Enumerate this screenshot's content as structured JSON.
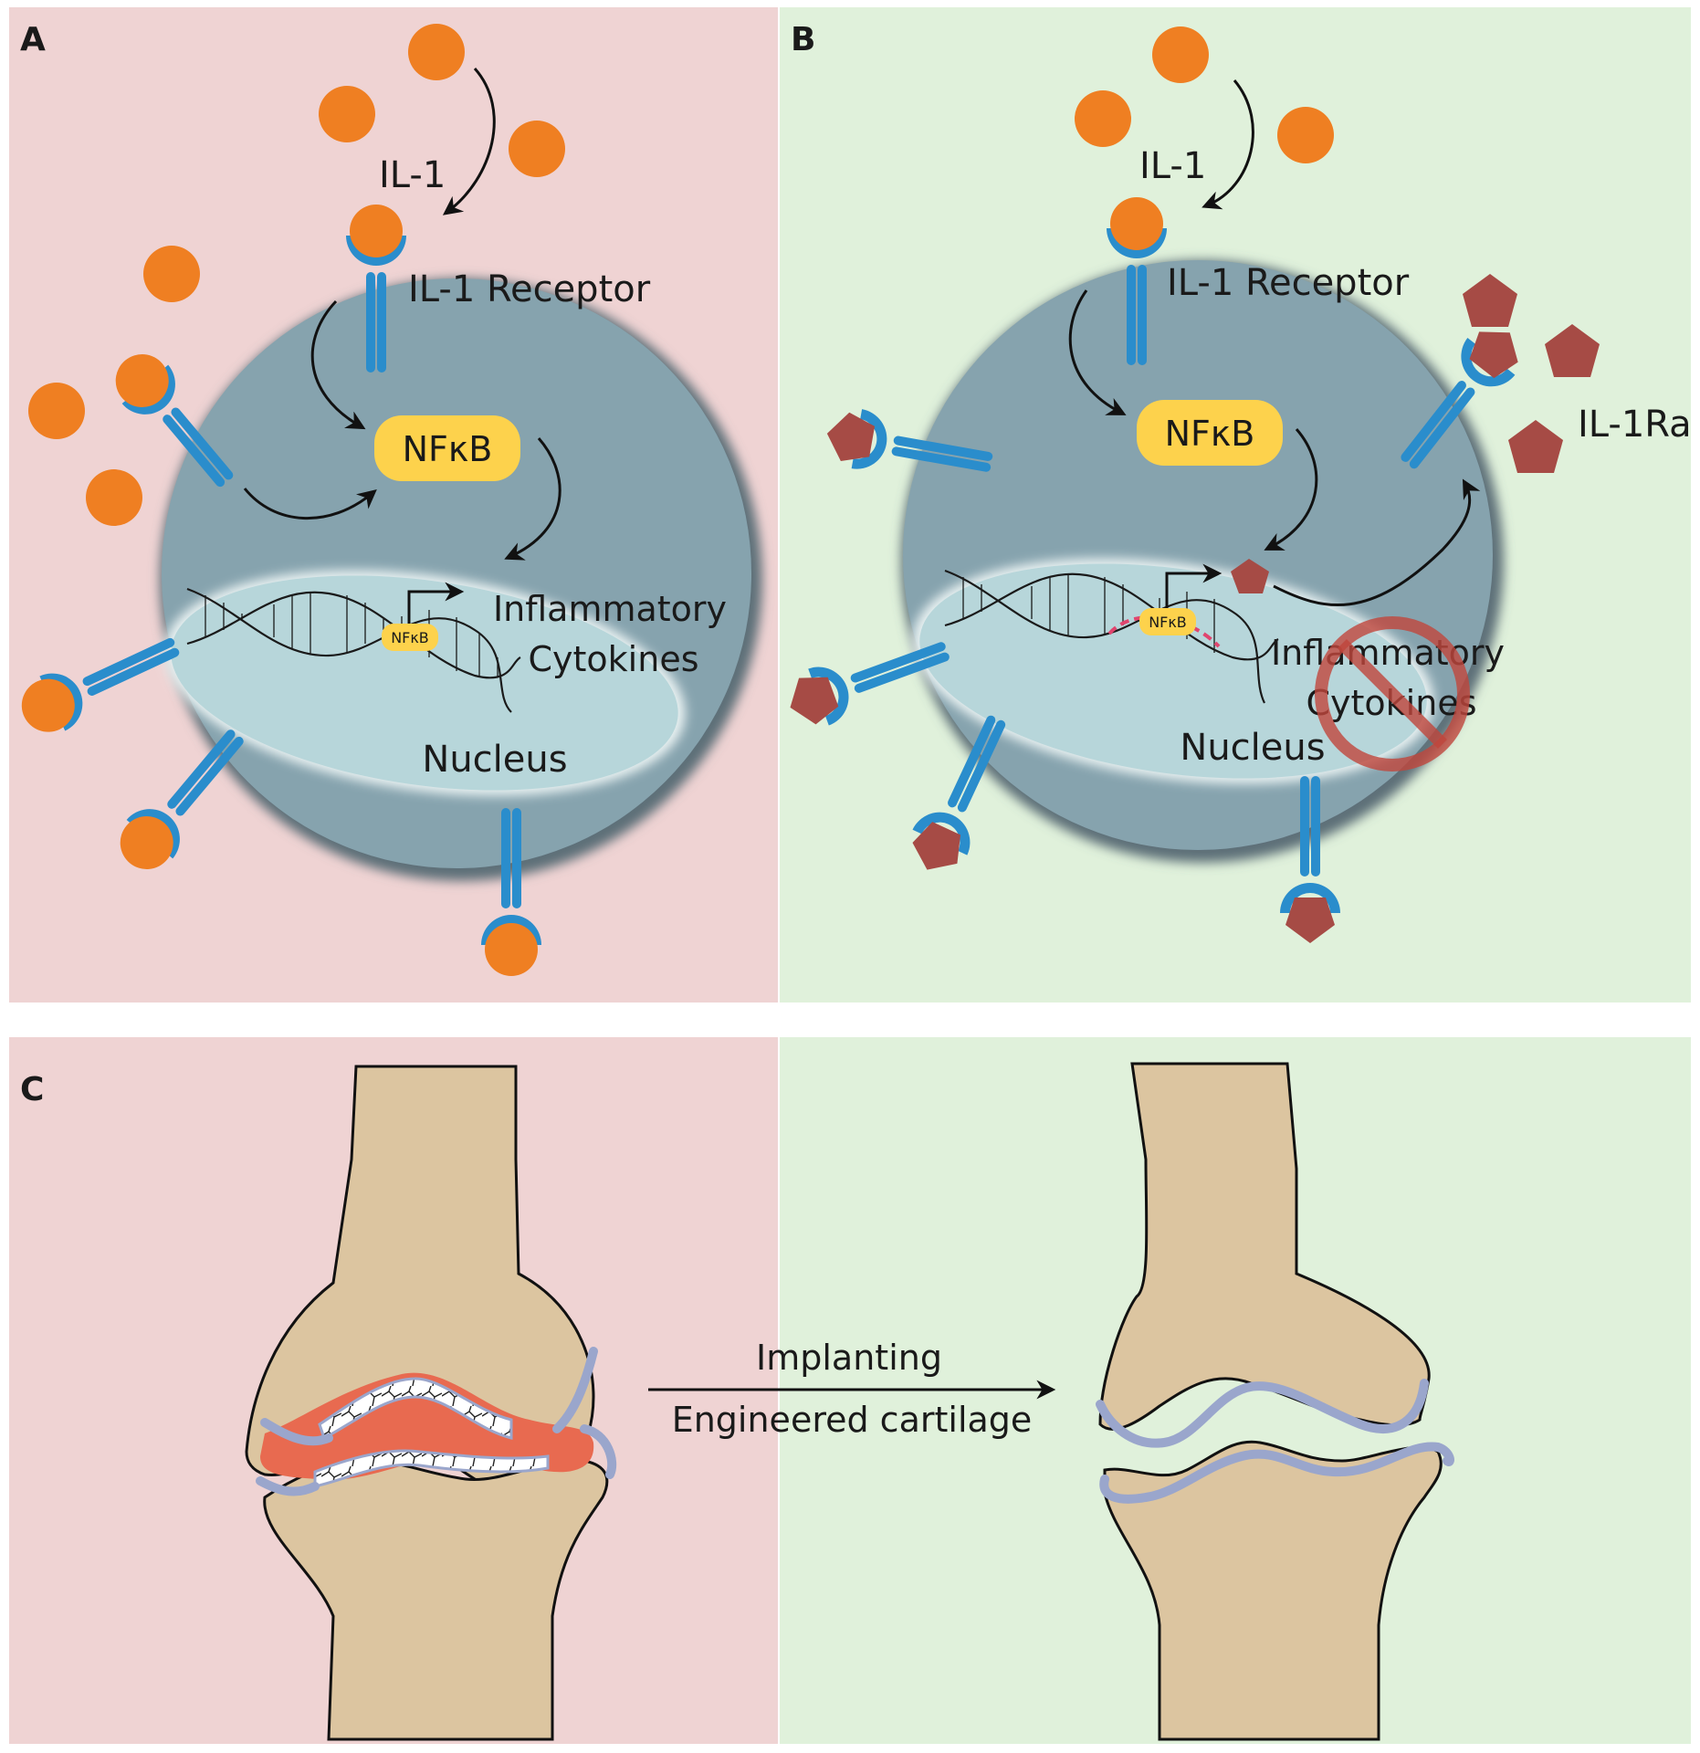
{
  "panel_a": {
    "letter": "A",
    "ligand_label": "IL-1",
    "receptor_label": "IL-1 Receptor",
    "nfkb_label": "NFκB",
    "nfkb_small_label": "NFκB",
    "cytokine_line1": "Inflammatory",
    "cytokine_line2": "Cytokines",
    "nucleus_label": "Nucleus"
  },
  "panel_b": {
    "letter": "B",
    "ligand_label": "IL-1",
    "receptor_label": "IL-1 Receptor",
    "nfkb_label": "NFκB",
    "nfkb_small_label": "NFκB",
    "antagonist_label": "IL-1Ra",
    "cytokine_line1": "Inflammatory",
    "cytokine_line2": "Cytokines",
    "nucleus_label": "Nucleus"
  },
  "panel_c": {
    "letter": "C",
    "arrow_line1": "Implanting",
    "arrow_line2": "Engineered cartilage"
  },
  "colors": {
    "inflamed_bg": "#efd3d3",
    "healthy_bg": "#e0f1db",
    "cell": "#86a3ae",
    "nucleus": "#b7d6da",
    "il1": "#ef7f22",
    "receptor": "#2a8dcc",
    "il1ra": "#a64b45",
    "nfkb": "#fdd24c",
    "bone": "#dcc5a0",
    "cartilage": "#9aa6cc",
    "inflamed_tissue": "#e86a50",
    "block_sign": "#c0463c"
  }
}
